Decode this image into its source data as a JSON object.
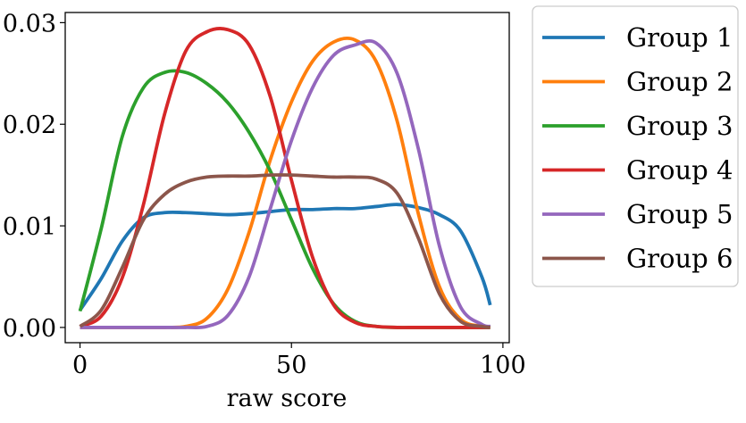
{
  "chart_data": {
    "type": "line",
    "xlabel": "raw score",
    "ylabel": "",
    "xlim": [
      -3.5,
      101.5
    ],
    "ylim": [
      -0.0015,
      0.031
    ],
    "xticks": [
      0,
      50,
      100
    ],
    "xtick_labels": [
      "0",
      "50",
      "100"
    ],
    "yticks": [
      0.0,
      0.01,
      0.02,
      0.03
    ],
    "ytick_labels": [
      "0.00",
      "0.01",
      "0.02",
      "0.03"
    ],
    "grid": false,
    "legend_position": "outside-right",
    "x": [
      0,
      5,
      10,
      15,
      20,
      25,
      30,
      35,
      40,
      45,
      50,
      55,
      60,
      65,
      70,
      75,
      80,
      85,
      90,
      95,
      97
    ],
    "series": [
      {
        "name": "Group 1",
        "color": "#1f77b4",
        "values": [
          0.0017,
          0.0048,
          0.0085,
          0.0108,
          0.0113,
          0.0113,
          0.0112,
          0.0111,
          0.0112,
          0.0114,
          0.0116,
          0.0116,
          0.0117,
          0.0117,
          0.0119,
          0.0121,
          0.0118,
          0.0111,
          0.0095,
          0.005,
          0.0022
        ]
      },
      {
        "name": "Group 2",
        "color": "#ff7f0e",
        "values": [
          0.0,
          0.0,
          0.0,
          0.0,
          0.0,
          0.0001,
          0.0009,
          0.0038,
          0.0094,
          0.0165,
          0.0222,
          0.0262,
          0.0281,
          0.0283,
          0.0262,
          0.0203,
          0.0112,
          0.004,
          0.0008,
          0.0001,
          0.0
        ]
      },
      {
        "name": "Group 3",
        "color": "#2ca02c",
        "values": [
          0.0016,
          0.0097,
          0.0188,
          0.0236,
          0.0251,
          0.0251,
          0.024,
          0.0221,
          0.0192,
          0.0154,
          0.0106,
          0.0058,
          0.0023,
          0.0006,
          0.0001,
          0.0,
          0.0,
          0.0,
          0.0,
          0.0,
          0.0
        ]
      },
      {
        "name": "Group 4",
        "color": "#d62728",
        "values": [
          0.0001,
          0.0011,
          0.0049,
          0.0121,
          0.021,
          0.0272,
          0.0291,
          0.0293,
          0.0278,
          0.0227,
          0.0145,
          0.0069,
          0.0022,
          0.0005,
          0.0001,
          0.0,
          0.0,
          0.0,
          0.0,
          0.0,
          0.0
        ]
      },
      {
        "name": "Group 5",
        "color": "#9467bd",
        "values": [
          0.0,
          0.0,
          0.0,
          0.0,
          0.0,
          0.0,
          0.0001,
          0.0012,
          0.005,
          0.0117,
          0.0184,
          0.0236,
          0.0268,
          0.0278,
          0.028,
          0.025,
          0.0176,
          0.008,
          0.002,
          0.0003,
          0.0001
        ]
      },
      {
        "name": "Group 6",
        "color": "#8c564b",
        "values": [
          0.0001,
          0.0017,
          0.0059,
          0.0106,
          0.0131,
          0.0143,
          0.0148,
          0.0149,
          0.0149,
          0.015,
          0.015,
          0.0149,
          0.0148,
          0.0148,
          0.0146,
          0.0132,
          0.0088,
          0.0033,
          0.0006,
          0.0001,
          0.0
        ]
      }
    ]
  }
}
